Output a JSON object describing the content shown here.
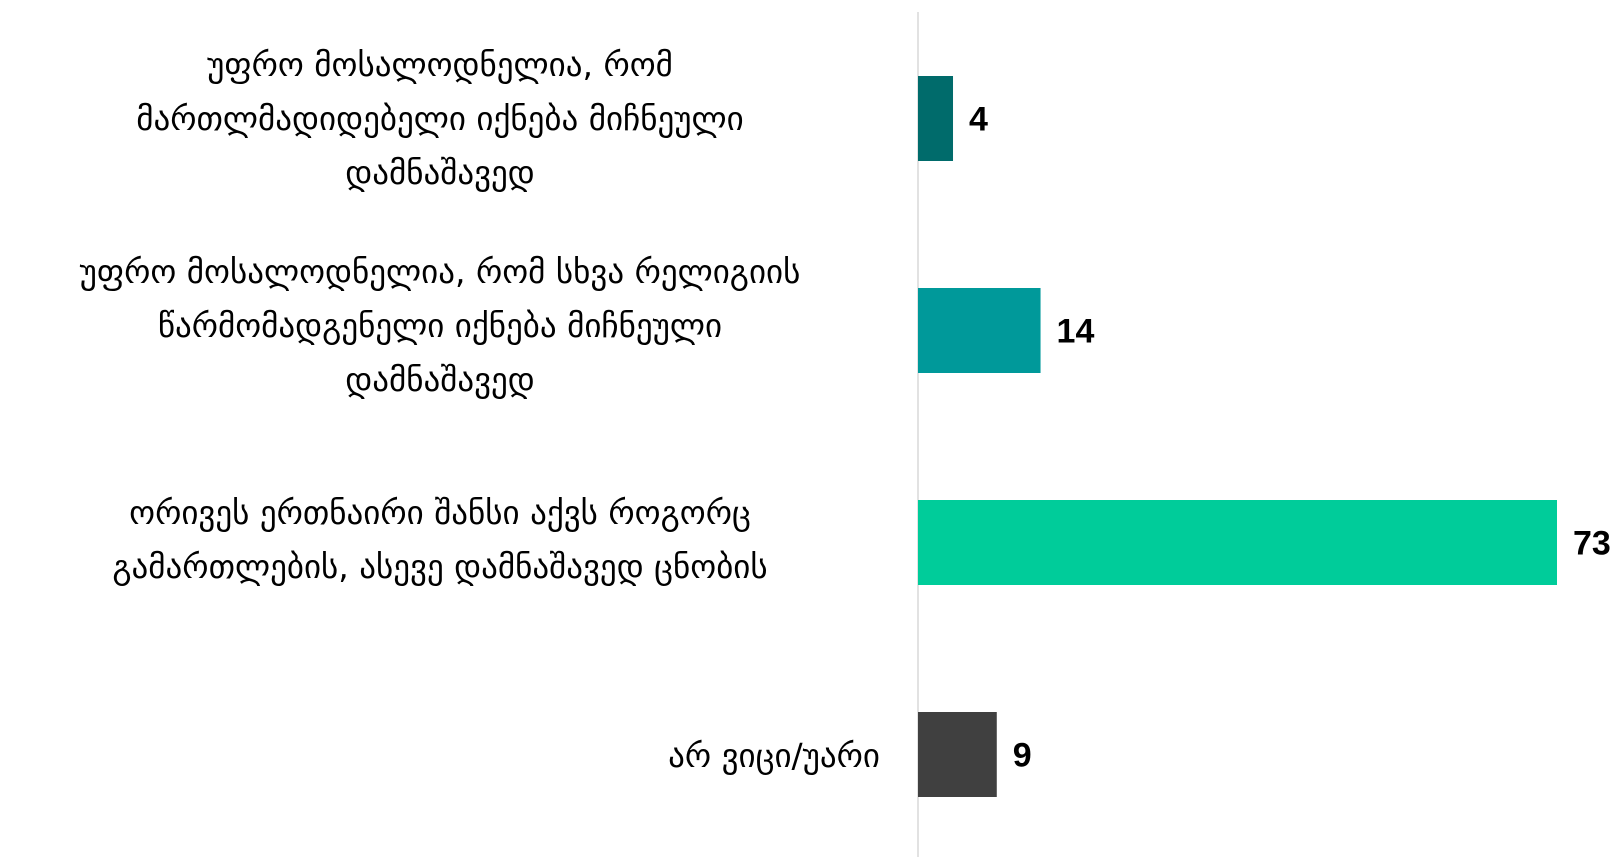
{
  "chart_data": {
    "type": "bar",
    "orientation": "horizontal",
    "categories": [
      [
        "უფრო მოსალოდნელია, რომ",
        "მართლმადიდებელი იქნება მიჩნეული",
        "დამნაშავედ"
      ],
      [
        "უფრო მოსალოდნელია, რომ სხვა რელიგიის",
        "წარმომადგენელი იქნება მიჩნეული",
        "დამნაშავედ"
      ],
      [
        "ორივეს ერთნაირი შანსი აქვს როგორც",
        "გამართლების, ასევე დამნაშავედ ცნობის"
      ],
      [
        "არ ვიცი/უარი"
      ]
    ],
    "values": [
      4,
      14,
      73,
      9
    ],
    "value_labels": [
      "4",
      "14",
      "73",
      "9"
    ],
    "colors": [
      "#006b6b",
      "#00999a",
      "#00cc9a",
      "#404040"
    ],
    "xlim": [
      0,
      73
    ],
    "grid": false,
    "legend": "none",
    "axis_line_color": "#d9d9d9"
  }
}
